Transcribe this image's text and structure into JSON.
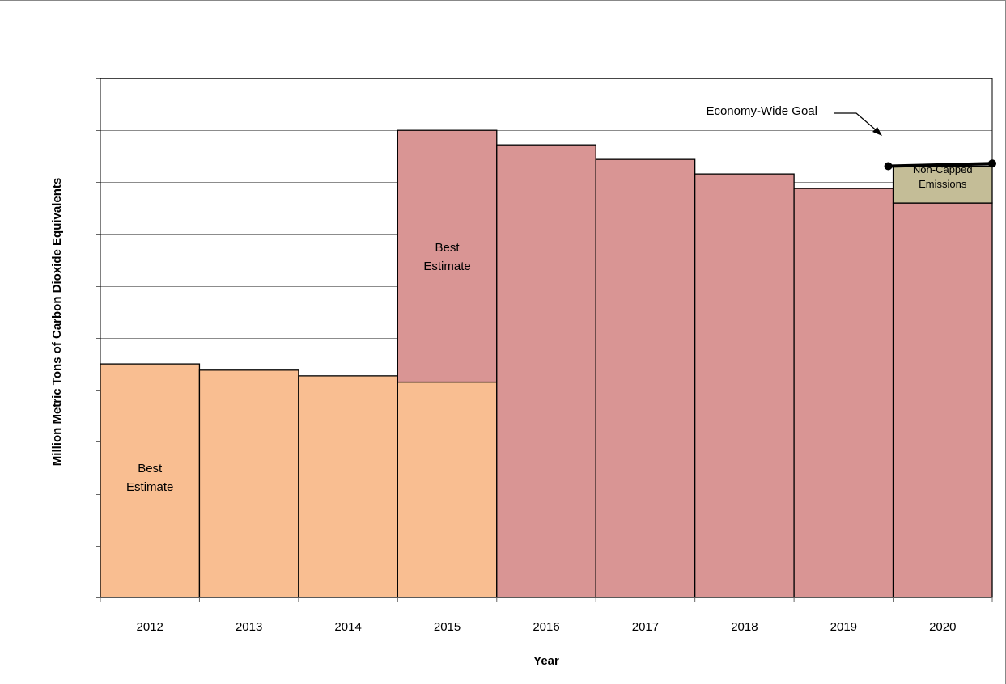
{
  "chart_data": {
    "type": "bar",
    "title": "",
    "xlabel": "Year",
    "ylabel": "Million Metric Tons of Carbon Dioxide Equivalents",
    "ylim": [
      0,
      10
    ],
    "y_ticks_labeled": false,
    "grid": "horizontal",
    "categories": [
      "2012",
      "2013",
      "2014",
      "2015",
      "2016",
      "2017",
      "2018",
      "2019",
      "2020"
    ],
    "series": [
      {
        "color": "#F9BE91",
        "values": [
          4.5,
          4.38,
          4.27,
          4.15,
          0,
          0,
          0,
          0,
          0
        ]
      },
      {
        "color": "#D99594",
        "values": [
          0,
          0,
          0,
          4.85,
          8.72,
          8.44,
          8.16,
          7.88,
          7.6
        ]
      },
      {
        "name": "Non-Capped Emissions",
        "color": "#C4BD97",
        "values": [
          0,
          0,
          0,
          0,
          0,
          0,
          0,
          0,
          0.71
        ]
      }
    ],
    "goal_line": {
      "label": "Economy-Wide Goal",
      "x": [
        "2019",
        "2020"
      ],
      "y": [
        8.31,
        8.36
      ],
      "color": "#000000"
    },
    "annotations": [
      {
        "text_lines": [
          "Best",
          "Estimate"
        ],
        "category": "2012"
      },
      {
        "text_lines": [
          "Best",
          "Estimate"
        ],
        "category": "2015"
      },
      {
        "text_lines": [
          "Non-Capped",
          "Emissions"
        ],
        "category": "2020"
      }
    ]
  }
}
